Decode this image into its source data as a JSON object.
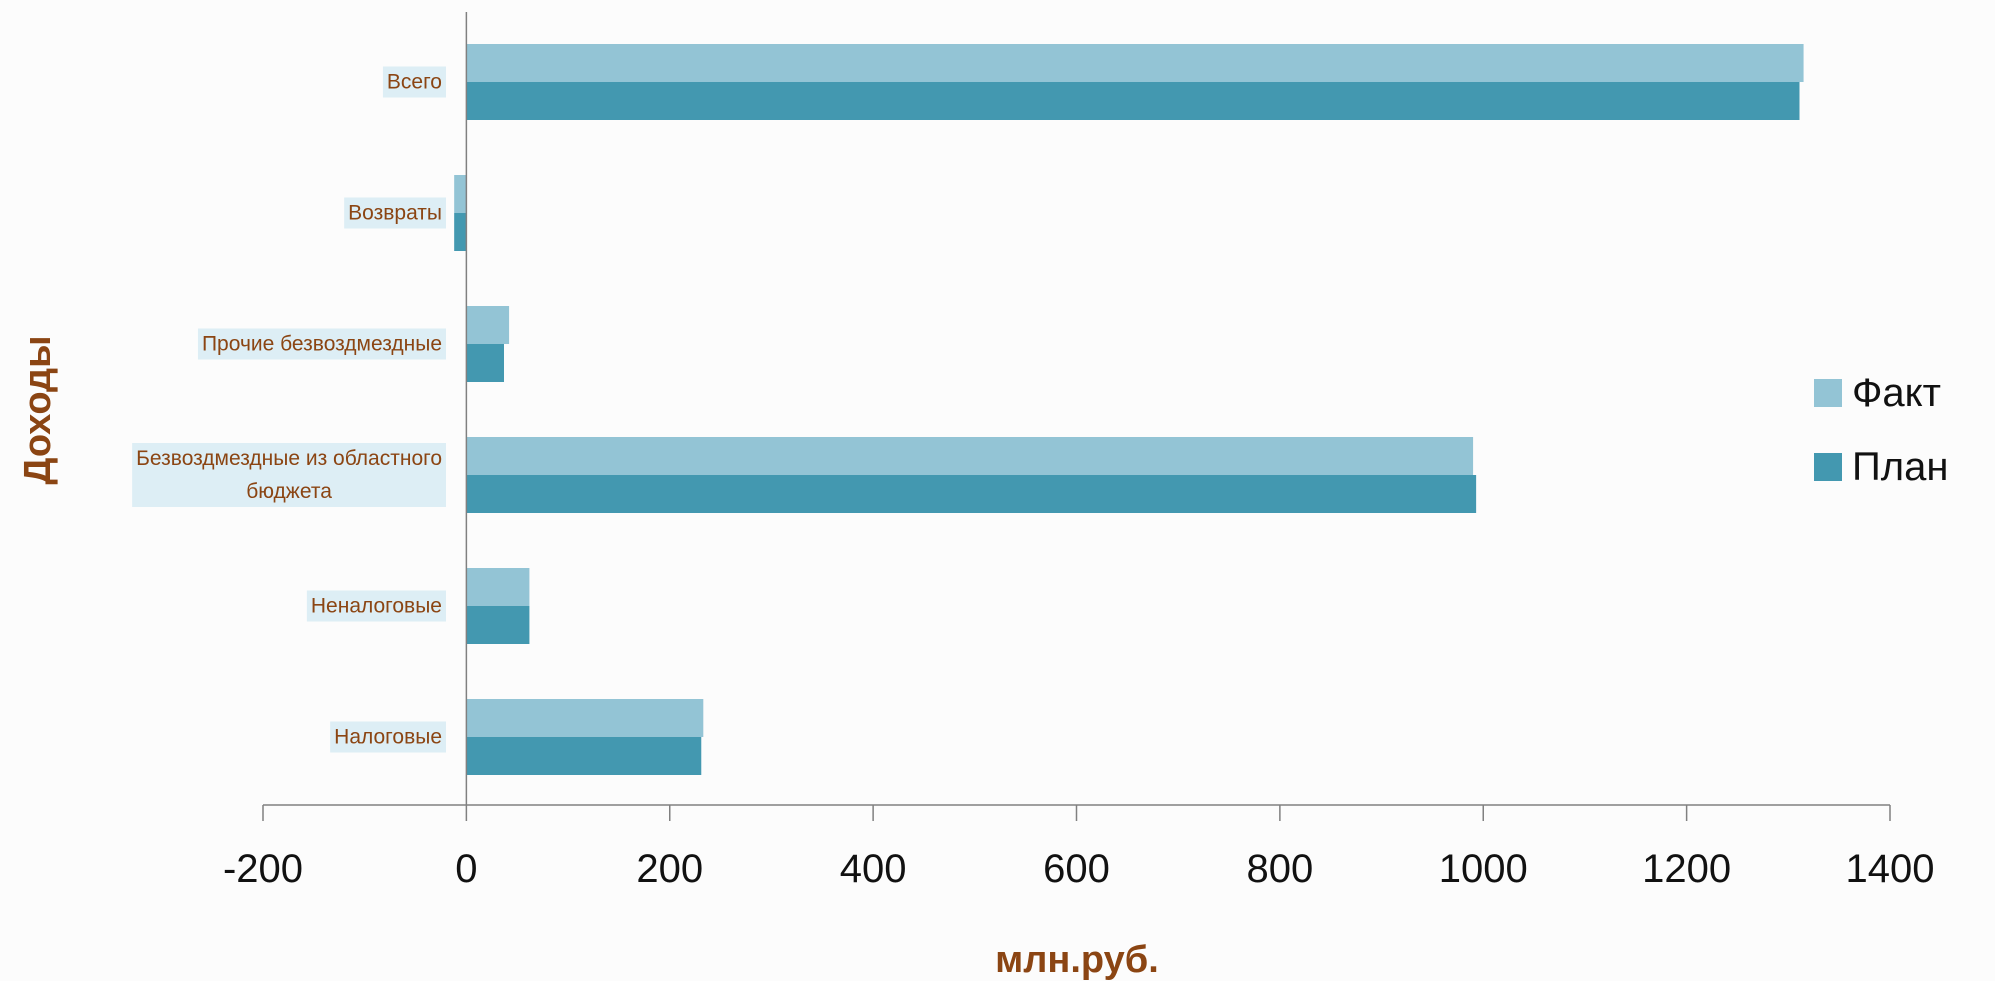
{
  "chart_data": {
    "type": "bar",
    "orientation": "horizontal",
    "categories": [
      "Всего",
      "Возвраты",
      "Прочие безвоздмездные",
      "Безвоздмездные из областного бюджета",
      "Неналоговые",
      "Налоговые"
    ],
    "category_lines": [
      [
        "Всего"
      ],
      [
        "Возвраты"
      ],
      [
        "Прочие безвоздмездные"
      ],
      [
        "Безвоздмездные из областного",
        "бюджета"
      ],
      [
        "Неналоговые"
      ],
      [
        "Налоговые"
      ]
    ],
    "series": [
      {
        "name": "Факт",
        "color": "#93c4d5",
        "values": [
          1315,
          -12,
          42,
          990,
          62,
          233
        ]
      },
      {
        "name": "План",
        "color": "#4398b0",
        "values": [
          1311,
          -12,
          37,
          993,
          62,
          231
        ]
      }
    ],
    "xlabel": "млн.руб.",
    "ylabel": "Доходы",
    "xlim": [
      -200,
      1400
    ],
    "x_ticks": [
      "-200",
      "0",
      "200",
      "400",
      "600",
      "800",
      "1000",
      "1200",
      "1400"
    ],
    "grid": false,
    "legend_position": "right",
    "colors": {
      "category_label": "#8b4513",
      "category_label_bg": "#ddeef5",
      "axis_title": "#8b4513",
      "axis_line": "#808080"
    }
  }
}
